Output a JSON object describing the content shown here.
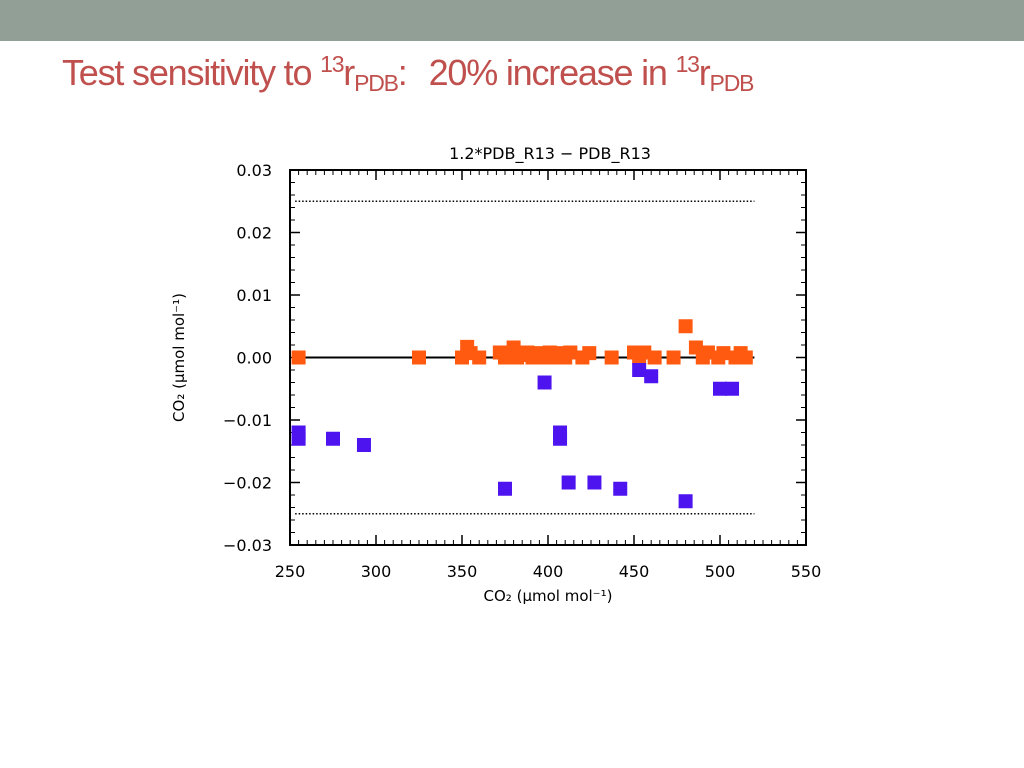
{
  "slide": {
    "title_part1": "Test sensitivity to ",
    "title_sup1": "13",
    "title_r1": "r",
    "title_sub1": "PDB",
    "title_colon": ":",
    "title_part2": "20% increase in ",
    "title_sup2": "13",
    "title_r2": "r",
    "title_sub2": "PDB",
    "title_color": "#c0504d",
    "top_bar_color": "#929f97"
  },
  "chart_data": {
    "type": "scatter",
    "title": "1.2*PDB_R13 − PDB_R13",
    "xlabel": "CO₂ (μmol mol⁻¹)",
    "ylabel": "CO₂ (μmol mol⁻¹)",
    "xlim": [
      250,
      550
    ],
    "ylim": [
      -0.03,
      0.03
    ],
    "xticks": [
      250,
      300,
      350,
      400,
      450,
      500,
      550
    ],
    "xtick_labels": [
      "250",
      "300",
      "350",
      "400",
      "450",
      "500",
      "550"
    ],
    "yticks": [
      -0.03,
      -0.02,
      -0.01,
      0.0,
      0.01,
      0.02,
      0.03
    ],
    "ytick_labels": [
      "−0.03",
      "−0.02",
      "−0.01",
      "0.00",
      "0.01",
      "0.02",
      "0.03"
    ],
    "reference_lines": [
      {
        "style": "solid",
        "y": 0.0,
        "x_range": [
          255,
          520
        ]
      },
      {
        "style": "dotted",
        "y": 0.025,
        "x_range": [
          253,
          520
        ]
      },
      {
        "style": "dotted",
        "y": -0.025,
        "x_range": [
          253,
          520
        ]
      }
    ],
    "series": [
      {
        "color": "#ff5a0f",
        "points": [
          [
            255,
            0.0
          ],
          [
            325,
            0.0
          ],
          [
            350,
            0.0
          ],
          [
            353,
            0.0017
          ],
          [
            355,
            0.0007
          ],
          [
            360,
            0.0
          ],
          [
            372,
            0.0008
          ],
          [
            375,
            0.0
          ],
          [
            378,
            0.0006
          ],
          [
            380,
            0.0016
          ],
          [
            382,
            0.0
          ],
          [
            385,
            0.0004
          ],
          [
            388,
            0.0008
          ],
          [
            391,
            0.0
          ],
          [
            395,
            0.0007
          ],
          [
            398,
            0.0
          ],
          [
            401,
            0.0008
          ],
          [
            404,
            0.0
          ],
          [
            407,
            0.0007
          ],
          [
            410,
            0.0
          ],
          [
            413,
            0.0008
          ],
          [
            420,
            0.0
          ],
          [
            424,
            0.0007
          ],
          [
            437,
            0.0
          ],
          [
            450,
            0.0008
          ],
          [
            453,
            0.0
          ],
          [
            456,
            0.0008
          ],
          [
            462,
            0.0
          ],
          [
            473,
            0.0
          ],
          [
            480,
            0.005
          ],
          [
            486,
            0.0016
          ],
          [
            490,
            0.0
          ],
          [
            493,
            0.0008
          ],
          [
            499,
            0.0
          ],
          [
            502,
            0.0007
          ],
          [
            509,
            0.0
          ],
          [
            512,
            0.0007
          ],
          [
            515,
            0.0
          ]
        ]
      },
      {
        "color": "#4e14f0",
        "points": [
          [
            255,
            -0.012
          ],
          [
            255,
            -0.013
          ],
          [
            275,
            -0.013
          ],
          [
            293,
            -0.014
          ],
          [
            375,
            -0.021
          ],
          [
            398,
            -0.004
          ],
          [
            407,
            -0.012
          ],
          [
            407,
            -0.013
          ],
          [
            412,
            -0.02
          ],
          [
            427,
            -0.02
          ],
          [
            442,
            -0.021
          ],
          [
            453,
            -0.002
          ],
          [
            460,
            -0.003
          ],
          [
            480,
            -0.023
          ],
          [
            500,
            -0.005
          ],
          [
            507,
            -0.005
          ]
        ]
      }
    ]
  }
}
